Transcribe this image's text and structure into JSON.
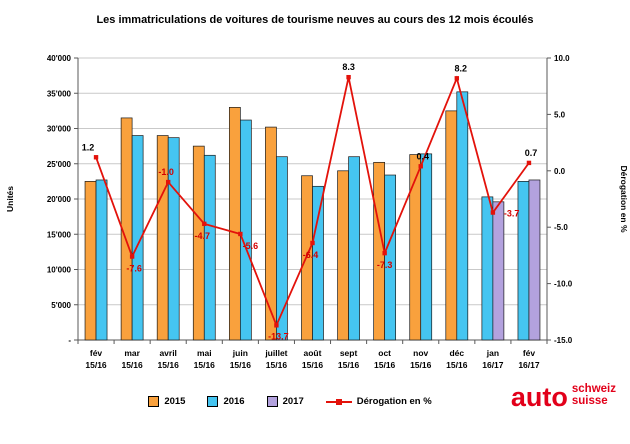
{
  "title": "Les immatriculations de voitures de tourisme neuves au cours des 12 mois écoulés",
  "chart_data": {
    "type": "bar",
    "subtype": "grouped bars with percentage line overlay",
    "categories": [
      {
        "month": "fév",
        "period": "15/16"
      },
      {
        "month": "mar",
        "period": "15/16"
      },
      {
        "month": "avril",
        "period": "15/16"
      },
      {
        "month": "mai",
        "period": "15/16"
      },
      {
        "month": "juin",
        "period": "15/16"
      },
      {
        "month": "juillet",
        "period": "15/16"
      },
      {
        "month": "août",
        "period": "15/16"
      },
      {
        "month": "sept",
        "period": "15/16"
      },
      {
        "month": "oct",
        "period": "15/16"
      },
      {
        "month": "nov",
        "period": "15/16"
      },
      {
        "month": "déc",
        "period": "15/16"
      },
      {
        "month": "jan",
        "period": "16/17"
      },
      {
        "month": "fév",
        "period": "16/17"
      }
    ],
    "series": [
      {
        "name": "2015",
        "color": "#F9A13D",
        "values": [
          22500,
          31500,
          29000,
          27500,
          33000,
          30200,
          23300,
          24000,
          25200,
          26300,
          32500,
          null,
          null
        ]
      },
      {
        "name": "2016",
        "color": "#45C5F1",
        "values": [
          22700,
          29000,
          28700,
          26200,
          31200,
          26000,
          21800,
          26000,
          23400,
          26400,
          35200,
          20300,
          22500
        ]
      },
      {
        "name": "2017",
        "color": "#B3A2DE",
        "values": [
          null,
          null,
          null,
          null,
          null,
          null,
          null,
          null,
          null,
          null,
          null,
          19600,
          22700
        ]
      }
    ],
    "line": {
      "name": "Dérogation en %",
      "color": "#E3120B",
      "label_color_positive": "#000000",
      "label_color_negative": "#D40000",
      "values": [
        1.2,
        -7.6,
        -1.0,
        -4.7,
        -5.6,
        -13.7,
        -6.4,
        8.3,
        -7.3,
        0.4,
        8.2,
        -3.7,
        0.7
      ]
    },
    "y_left": {
      "label": "Unités",
      "min": 0,
      "max": 40000,
      "step": 5000,
      "tick_labels": [
        "-",
        "5'000",
        "10'000",
        "15'000",
        "20'000",
        "25'000",
        "30'000",
        "35'000",
        "40'000"
      ]
    },
    "y_right": {
      "label": "Dérogation en %",
      "min": -15,
      "max": 10,
      "step": 5,
      "tick_labels": [
        "-15.0",
        "-10.0",
        "-5.0",
        "0.0",
        "5.0",
        "10.0"
      ]
    },
    "grid": true,
    "legend_position": "bottom"
  },
  "legend": {
    "items": [
      {
        "label": "2015"
      },
      {
        "label": "2016"
      },
      {
        "label": "2017"
      },
      {
        "label": "Dérogation en %"
      }
    ]
  },
  "logo": {
    "word": "auto",
    "line1": "schweiz",
    "line2": "suisse",
    "color": "#E2001A"
  }
}
